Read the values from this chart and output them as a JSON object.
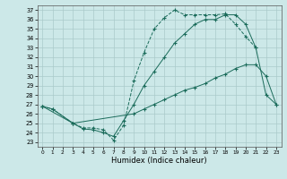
{
  "title": "",
  "xlabel": "Humidex (Indice chaleur)",
  "bg_color": "#cce8e8",
  "grid_color": "#aacaca",
  "line_color": "#1a6b5a",
  "xlim": [
    -0.5,
    23.5
  ],
  "ylim": [
    22.5,
    37.5
  ],
  "xticks": [
    0,
    1,
    2,
    3,
    4,
    5,
    6,
    7,
    8,
    9,
    10,
    11,
    12,
    13,
    14,
    15,
    16,
    17,
    18,
    19,
    20,
    21,
    22,
    23
  ],
  "yticks": [
    23,
    24,
    25,
    26,
    27,
    28,
    29,
    30,
    31,
    32,
    33,
    34,
    35,
    36,
    37
  ],
  "c1x": [
    0,
    1,
    3,
    4,
    5,
    6,
    7,
    8,
    9,
    10,
    11,
    12,
    13,
    14,
    15,
    16,
    17,
    18,
    19,
    20,
    21
  ],
  "c1y": [
    26.8,
    26.5,
    25.0,
    24.5,
    24.5,
    24.3,
    23.2,
    24.8,
    29.5,
    32.5,
    35.0,
    36.2,
    37.0,
    36.5,
    36.5,
    36.5,
    36.5,
    36.6,
    35.5,
    34.2,
    33.0
  ],
  "c2x": [
    0,
    3,
    4,
    5,
    6,
    7,
    8,
    9,
    10,
    11,
    12,
    13,
    14,
    15,
    16,
    17,
    18,
    19,
    20,
    21,
    22,
    23
  ],
  "c2y": [
    26.8,
    25.0,
    24.4,
    24.3,
    24.0,
    23.6,
    25.3,
    27.0,
    29.0,
    30.5,
    32.0,
    33.5,
    34.5,
    35.5,
    36.0,
    36.0,
    36.5,
    36.5,
    35.5,
    33.0,
    28.0,
    27.0
  ],
  "c3x": [
    0,
    1,
    3,
    9,
    10,
    11,
    12,
    13,
    14,
    15,
    16,
    17,
    18,
    19,
    20,
    21,
    22,
    23
  ],
  "c3y": [
    26.8,
    26.5,
    25.0,
    26.0,
    26.5,
    27.0,
    27.5,
    28.0,
    28.5,
    28.8,
    29.2,
    29.8,
    30.2,
    30.8,
    31.2,
    31.2,
    30.0,
    27.0
  ],
  "xlabel_fontsize": 6,
  "tick_fontsize": 5
}
